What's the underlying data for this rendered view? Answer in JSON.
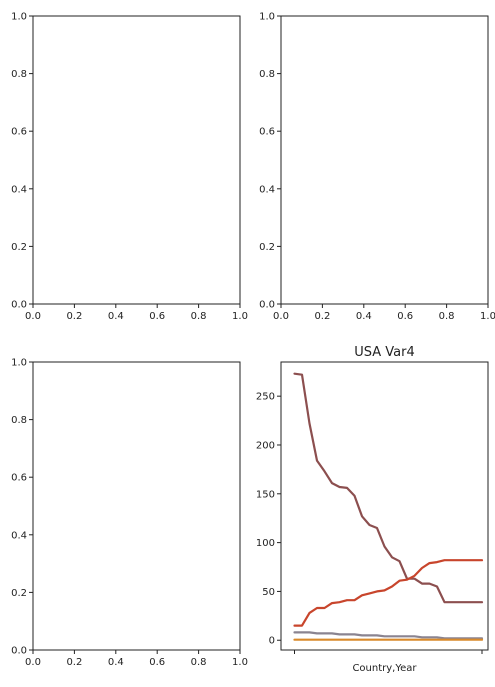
{
  "chart_data": [
    {
      "type": "line",
      "title": "",
      "xlabel": "",
      "ylabel": "",
      "xlim": [
        0,
        1
      ],
      "ylim": [
        0,
        1
      ],
      "xticks": [
        "0.0",
        "0.2",
        "0.4",
        "0.6",
        "0.8",
        "1.0"
      ],
      "yticks": [
        "0.0",
        "0.2",
        "0.4",
        "0.6",
        "0.8",
        "1.0"
      ],
      "grid": false,
      "series": []
    },
    {
      "type": "line",
      "title": "",
      "xlabel": "",
      "ylabel": "",
      "xlim": [
        0,
        1
      ],
      "ylim": [
        0,
        1
      ],
      "xticks": [
        "0.0",
        "0.2",
        "0.4",
        "0.6",
        "0.8",
        "1.0"
      ],
      "yticks": [
        "0.0",
        "0.2",
        "0.4",
        "0.6",
        "0.8",
        "1.0"
      ],
      "grid": false,
      "series": []
    },
    {
      "type": "line",
      "title": "",
      "xlabel": "",
      "ylabel": "",
      "xlim": [
        0,
        1
      ],
      "ylim": [
        0,
        1
      ],
      "xticks": [
        "0.0",
        "0.2",
        "0.4",
        "0.6",
        "0.8",
        "1.0"
      ],
      "yticks": [
        "0.0",
        "0.2",
        "0.4",
        "0.6",
        "0.8",
        "1.0"
      ],
      "grid": false,
      "series": []
    },
    {
      "type": "line",
      "title": "USA Var4",
      "xlabel": "Country,Year",
      "ylabel": "",
      "ylim": [
        -10,
        285
      ],
      "yticks": [
        "0",
        "50",
        "100",
        "150",
        "200",
        "250"
      ],
      "ytick_values": [
        0,
        50,
        100,
        150,
        200,
        250
      ],
      "xticks": [
        "",
        ""
      ],
      "xtick_values": [
        0,
        25
      ],
      "x": [
        0,
        1,
        2,
        3,
        4,
        5,
        6,
        7,
        8,
        9,
        10,
        11,
        12,
        13,
        14,
        15,
        16,
        17,
        18,
        19,
        20,
        21,
        22,
        23,
        24,
        25
      ],
      "xlim": [
        -1.8,
        25.8
      ],
      "grid": false,
      "series": [
        {
          "color": "#8c4f4f",
          "values": [
            273,
            272,
            222,
            184,
            173,
            161,
            157,
            156,
            148,
            127,
            118,
            115,
            96,
            85,
            81,
            63,
            63,
            58,
            58,
            55,
            39,
            39,
            39,
            39,
            39,
            39
          ]
        },
        {
          "color": "#c8452c",
          "values": [
            15,
            15,
            28,
            33,
            33,
            38,
            39,
            41,
            41,
            46,
            48,
            50,
            51,
            55,
            61,
            62,
            66,
            74,
            79,
            80,
            82,
            82,
            82,
            82,
            82,
            82
          ]
        },
        {
          "color": "#8a8490",
          "values": [
            8,
            8,
            8,
            7,
            7,
            7,
            6,
            6,
            6,
            5,
            5,
            5,
            4,
            4,
            4,
            4,
            4,
            3,
            3,
            3,
            2,
            2,
            2,
            2,
            2,
            2
          ]
        },
        {
          "color": "#d98a2b",
          "values": [
            0.5,
            0.5,
            0.5,
            0.5,
            0.5,
            0.5,
            0.5,
            0.5,
            0.5,
            0.5,
            0.5,
            0.5,
            0.5,
            0.5,
            0.5,
            0.5,
            0.5,
            0.5,
            0.5,
            0.5,
            0.5,
            0.5,
            0.5,
            0.5,
            0.5,
            0.5
          ]
        }
      ]
    }
  ]
}
